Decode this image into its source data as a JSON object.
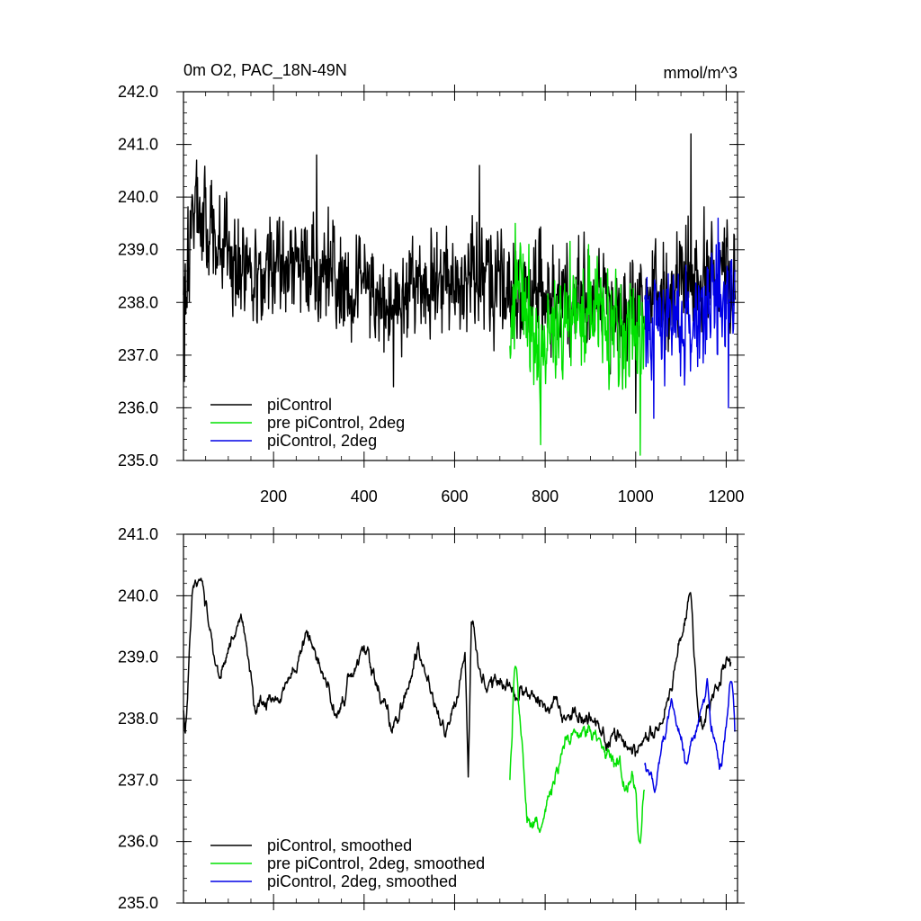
{
  "chart_data": [
    {
      "type": "line",
      "title": "0m O2, PAC_18N-49N",
      "units": "mmol/m^3",
      "xlim": [
        1,
        1225
      ],
      "ylim": [
        235,
        242
      ],
      "xticks": [
        200,
        400,
        600,
        800,
        1000,
        1200
      ],
      "xtick_labels": [
        "200",
        "400",
        "600",
        "800",
        "1000",
        "1200"
      ],
      "yticks": [
        235,
        236,
        237,
        238,
        239,
        240,
        241,
        242
      ],
      "ytick_labels": [
        "235.0",
        "236.0",
        "237.0",
        "238.0",
        "239.0",
        "240.0",
        "241.0",
        "242.0"
      ],
      "legend_position": "bottom-left",
      "series": [
        {
          "name": "piControl",
          "color": "#000000",
          "x_start": 1,
          "x_end": 1220,
          "n": 1220,
          "mean": 238.45,
          "std": 0.85,
          "keypoints": [
            [
              1,
              238.2
            ],
            [
              20,
              239.8
            ],
            [
              60,
              239.3
            ],
            [
              150,
              238.7
            ],
            [
              300,
              238.6
            ],
            [
              450,
              238.0
            ],
            [
              560,
              238.3
            ],
            [
              660,
              238.6
            ],
            [
              740,
              237.9
            ],
            [
              820,
              238.3
            ],
            [
              980,
              237.7
            ],
            [
              1060,
              238.1
            ],
            [
              1120,
              238.5
            ],
            [
              1220,
              238.6
            ]
          ],
          "extremes": [
            [
              3,
              236.5
            ],
            [
              30,
              240.7
            ],
            [
              295,
              240.8
            ],
            [
              465,
              236.4
            ],
            [
              655,
              240.6
            ],
            [
              1000,
              235.9
            ],
            [
              1122,
              241.2
            ]
          ]
        },
        {
          "name": "pre piControl, 2deg",
          "color": "#00e000",
          "x_start": 722,
          "x_end": 1019,
          "n": 298,
          "mean": 237.5,
          "std": 0.85,
          "keypoints": [
            [
              722,
              237.4
            ],
            [
              735,
              238.4
            ],
            [
              790,
              237.0
            ],
            [
              850,
              237.8
            ],
            [
              940,
              237.5
            ],
            [
              1019,
              237.1
            ]
          ],
          "extremes": [
            [
              734,
              239.5
            ],
            [
              790,
              235.3
            ],
            [
              1010,
              235.1
            ]
          ]
        },
        {
          "name": "piControl, 2deg",
          "color": "#0000e6",
          "x_start": 1020,
          "x_end": 1219,
          "n": 200,
          "mean": 237.85,
          "std": 0.8,
          "keypoints": [
            [
              1020,
              237.5
            ],
            [
              1080,
              237.8
            ],
            [
              1140,
              237.6
            ],
            [
              1190,
              238.2
            ],
            [
              1219,
              238.4
            ]
          ],
          "extremes": [
            [
              1040,
              235.8
            ],
            [
              1182,
              239.6
            ],
            [
              1205,
              236.0
            ]
          ]
        }
      ]
    },
    {
      "type": "line",
      "xlim": [
        1,
        1225
      ],
      "ylim": [
        235,
        241
      ],
      "yticks": [
        235,
        236,
        237,
        238,
        239,
        240,
        241
      ],
      "ytick_labels": [
        "235.0",
        "236.0",
        "237.0",
        "238.0",
        "239.0",
        "240.0",
        "241.0"
      ],
      "xticks": [
        200,
        400,
        600,
        800,
        1000,
        1200
      ],
      "xtick_labels": [],
      "legend_position": "bottom-left",
      "series": [
        {
          "name": "piControl, smoothed",
          "color": "#000000",
          "x_start": 1,
          "x_end": 1210,
          "n": 1210,
          "mean": 238.45,
          "std": 0.45,
          "keypoints": [
            [
              1,
              238.1
            ],
            [
              5,
              237.7
            ],
            [
              20,
              240.0
            ],
            [
              40,
              240.2
            ],
            [
              80,
              238.6
            ],
            [
              130,
              239.8
            ],
            [
              160,
              238.1
            ],
            [
              220,
              238.4
            ],
            [
              280,
              239.4
            ],
            [
              340,
              238.0
            ],
            [
              400,
              239.2
            ],
            [
              460,
              237.8
            ],
            [
              520,
              239.1
            ],
            [
              580,
              237.6
            ],
            [
              640,
              239.6
            ],
            [
              660,
              238.6
            ],
            [
              730,
              238.5
            ],
            [
              800,
              238.3
            ],
            [
              900,
              238.0
            ],
            [
              1000,
              237.5
            ],
            [
              1060,
              237.9
            ],
            [
              1120,
              240.0
            ],
            [
              1140,
              237.8
            ],
            [
              1200,
              238.9
            ],
            [
              1210,
              238.9
            ]
          ],
          "extremes": [
            [
              37,
              240.25
            ],
            [
              630,
              237.05
            ],
            [
              1121,
              240.05
            ]
          ]
        },
        {
          "name": "pre piControl, 2deg, smoothed",
          "color": "#00e000",
          "x_start": 722,
          "x_end": 1019,
          "n": 298,
          "mean": 237.4,
          "std": 0.5,
          "keypoints": [
            [
              722,
              237.0
            ],
            [
              735,
              238.8
            ],
            [
              760,
              236.4
            ],
            [
              790,
              236.2
            ],
            [
              850,
              237.7
            ],
            [
              900,
              237.8
            ],
            [
              950,
              237.3
            ],
            [
              1000,
              236.8
            ],
            [
              1010,
              236.0
            ],
            [
              1019,
              237.0
            ]
          ],
          "extremes": [
            [
              734,
              238.85
            ],
            [
              788,
              236.15
            ],
            [
              1008,
              236.0
            ]
          ]
        },
        {
          "name": "piControl, 2deg, smoothed",
          "color": "#0000e6",
          "x_start": 1020,
          "x_end": 1219,
          "n": 200,
          "mean": 237.75,
          "std": 0.4,
          "keypoints": [
            [
              1020,
              237.2
            ],
            [
              1040,
              236.9
            ],
            [
              1080,
              238.2
            ],
            [
              1110,
              237.2
            ],
            [
              1150,
              238.4
            ],
            [
              1190,
              237.2
            ],
            [
              1210,
              238.6
            ],
            [
              1219,
              237.8
            ]
          ],
          "extremes": [
            [
              1042,
              236.8
            ],
            [
              1158,
              238.65
            ],
            [
              1212,
              238.6
            ]
          ]
        }
      ]
    }
  ]
}
